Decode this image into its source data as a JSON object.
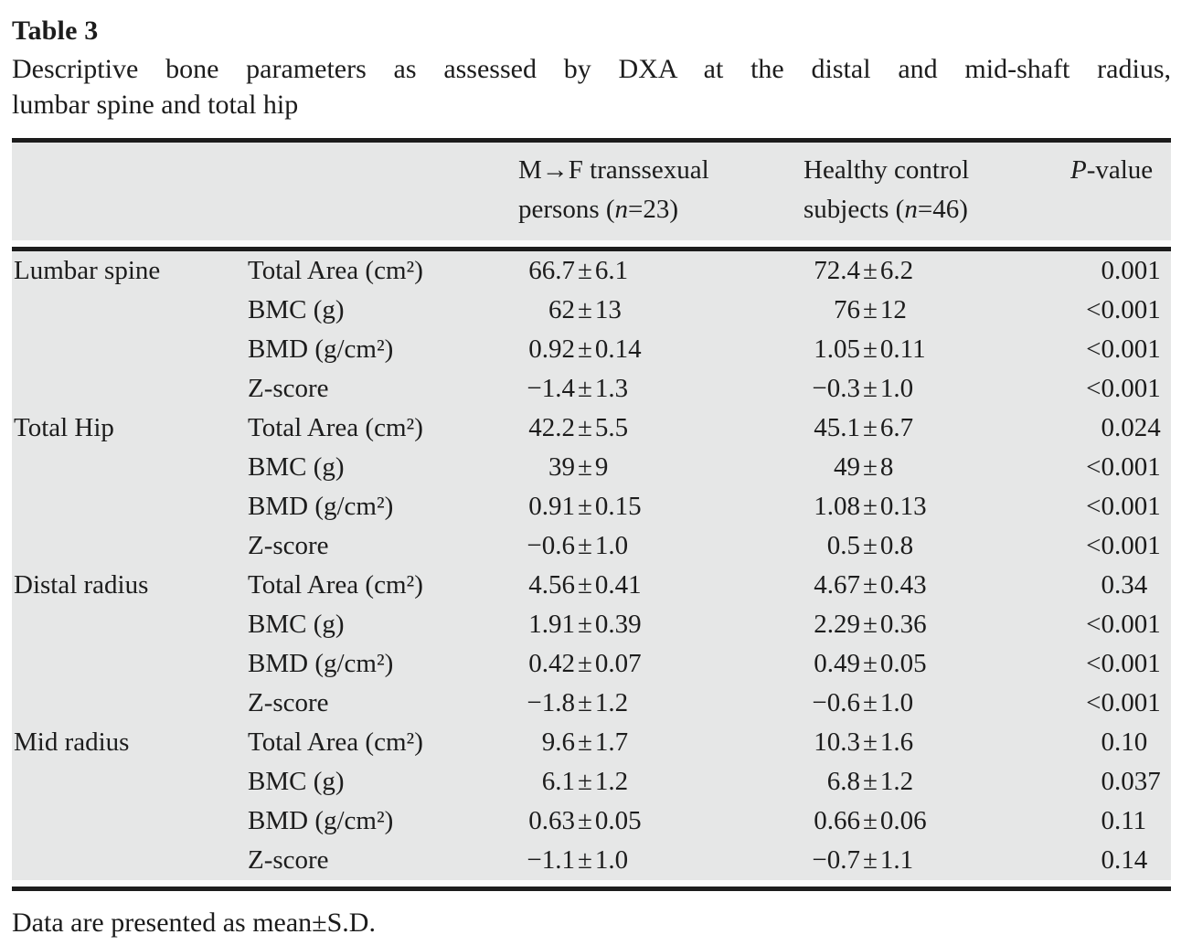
{
  "label": "Table 3",
  "caption_lines": [
    "Descriptive bone parameters as assessed by DXA at the distal and mid-shaft radius,",
    "lumbar spine and total hip"
  ],
  "header": {
    "mf": {
      "line1": "M→F transsexual",
      "line2_pre": "persons (",
      "line2_n": "n",
      "line2_post": "=23)"
    },
    "hc": {
      "line1": "Healthy control",
      "line2_pre": "subjects (",
      "line2_n": "n",
      "line2_post": "=46)"
    },
    "p": {
      "italic": "P",
      "rest": "-value"
    }
  },
  "sections": [
    {
      "region": "Lumbar spine",
      "rows": [
        {
          "param": "Total Area (cm²)",
          "mf": "66.7±6.1",
          "hc": "72.4±6.2",
          "p": "0.001"
        },
        {
          "param": "BMC (g)",
          "mf": "62±13",
          "hc": "76±12",
          "p": "<0.001"
        },
        {
          "param": "BMD (g/cm²)",
          "mf": "0.92±0.14",
          "hc": "1.05±0.11",
          "p": "<0.001"
        },
        {
          "param": "Z-score",
          "mf": "−1.4±1.3",
          "hc": "−0.3±1.0",
          "p": "<0.001"
        }
      ]
    },
    {
      "region": "Total Hip",
      "rows": [
        {
          "param": "Total Area (cm²)",
          "mf": "42.2±5.5",
          "hc": "45.1±6.7",
          "p": "0.024"
        },
        {
          "param": "BMC (g)",
          "mf": "39±9",
          "hc": "49±8",
          "p": "<0.001"
        },
        {
          "param": "BMD (g/cm²)",
          "mf": "0.91±0.15",
          "hc": "1.08±0.13",
          "p": "<0.001"
        },
        {
          "param": "Z-score",
          "mf": "−0.6±1.0",
          "hc": "0.5±0.8",
          "p": "<0.001"
        }
      ]
    },
    {
      "region": "Distal radius",
      "rows": [
        {
          "param": "Total Area (cm²)",
          "mf": "4.56±0.41",
          "hc": "4.67±0.43",
          "p": "0.34"
        },
        {
          "param": "BMC (g)",
          "mf": "1.91±0.39",
          "hc": "2.29±0.36",
          "p": "<0.001"
        },
        {
          "param": "BMD (g/cm²)",
          "mf": "0.42±0.07",
          "hc": "0.49±0.05",
          "p": "<0.001"
        },
        {
          "param": "Z-score",
          "mf": "−1.8±1.2",
          "hc": "−0.6±1.0",
          "p": "<0.001"
        }
      ]
    },
    {
      "region": "Mid radius",
      "rows": [
        {
          "param": "Total Area (cm²)",
          "mf": "9.6±1.7",
          "hc": "10.3±1.6",
          "p": "0.10"
        },
        {
          "param": "BMC (g)",
          "mf": "6.1±1.2",
          "hc": "6.8±1.2",
          "p": "0.037"
        },
        {
          "param": "BMD (g/cm²)",
          "mf": "0.63±0.05",
          "hc": "0.66±0.06",
          "p": "0.11"
        },
        {
          "param": "Z-score",
          "mf": "−1.1±1.0",
          "hc": "−0.7±1.1",
          "p": "0.14"
        }
      ]
    }
  ],
  "footnote": "Data are presented as mean±S.D.",
  "colors": {
    "table_bg": "#e6e7e7",
    "rule": "#1c1c1c",
    "text": "#1c1c1c"
  }
}
